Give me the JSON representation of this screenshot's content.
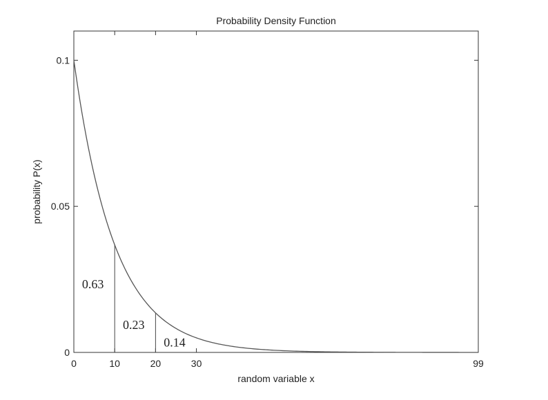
{
  "chart_data": {
    "type": "line",
    "title": "Probability Density Function",
    "xlabel": "random variable x",
    "ylabel": "probability P(x)",
    "xlim": [
      0,
      99
    ],
    "ylim": [
      0,
      0.11
    ],
    "x_ticks": [
      0,
      10,
      20,
      30,
      99
    ],
    "x_tick_labels": [
      "0",
      "10",
      "20",
      "30",
      "99"
    ],
    "y_ticks": [
      0,
      0.05,
      0.1
    ],
    "y_tick_labels": [
      "0",
      "0.05",
      "0.1"
    ],
    "grid": false,
    "series": [
      {
        "function": "0.1*exp(-x/10)",
        "x": [
          0,
          5,
          10,
          15,
          20,
          25,
          30,
          40,
          50,
          60,
          70,
          80,
          90,
          99
        ],
        "y": [
          0.1,
          0.0607,
          0.0368,
          0.0223,
          0.0135,
          0.0082,
          0.005,
          0.0018,
          0.0007,
          0.0002,
          0.0001,
          0.0,
          0.0,
          0.0
        ],
        "color": "#555555"
      }
    ],
    "vertical_lines": [
      10,
      20
    ],
    "annotations": [
      {
        "text": "0.63",
        "x": 2,
        "y": 0.022
      },
      {
        "text": "0.23",
        "x": 12,
        "y": 0.008
      },
      {
        "text": "0.14",
        "x": 22,
        "y": 0.002
      }
    ]
  }
}
